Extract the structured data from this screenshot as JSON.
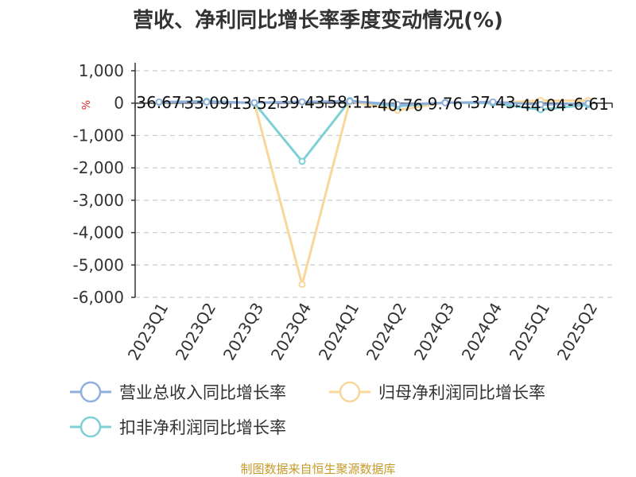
{
  "chart_data": {
    "type": "line",
    "title": "营收、净利同比增长率季度变动情况(%)",
    "unit_label": "%",
    "source": "制图数据来自恒生聚源数据库",
    "categories": [
      "2023Q1",
      "2023Q2",
      "2023Q3",
      "2023Q4",
      "2024Q1",
      "2024Q2",
      "2024Q3",
      "2024Q4",
      "2025Q1",
      "2025Q2"
    ],
    "ylim": [
      -6000,
      1000
    ],
    "yticks": [
      1000,
      0,
      -1000,
      -2000,
      -3000,
      -4000,
      -5000,
      -6000
    ],
    "ytick_labels": [
      "1,000",
      "0",
      "-1,000",
      "-2,000",
      "-3,000",
      "-4,000",
      "-5,000",
      "-6,000"
    ],
    "grid": true,
    "legend_position": "bottom",
    "series": [
      {
        "name": "营业总收入同比增长率",
        "color": "#8fb0dc",
        "values": [
          36.67,
          33.09,
          13.52,
          39.43,
          58.11,
          -40.76,
          9.76,
          37.43,
          -44.04,
          -6.61
        ]
      },
      {
        "name": "归母净利润同比增长率",
        "color": "#f9d79a",
        "values": [
          30,
          60,
          0,
          -5600,
          60,
          -220,
          20,
          0,
          80,
          80
        ]
      },
      {
        "name": "扣非净利润同比增长率",
        "color": "#7fd0d6",
        "values": [
          30,
          60,
          0,
          -1800,
          80,
          -100,
          20,
          0,
          -200,
          -50
        ]
      }
    ],
    "data_labels": [
      "36.67",
      "33.09",
      "13.52",
      "39.43",
      "58.11",
      "-40.76",
      "9.76",
      "37.43",
      "-44.04",
      "-6.61"
    ]
  }
}
